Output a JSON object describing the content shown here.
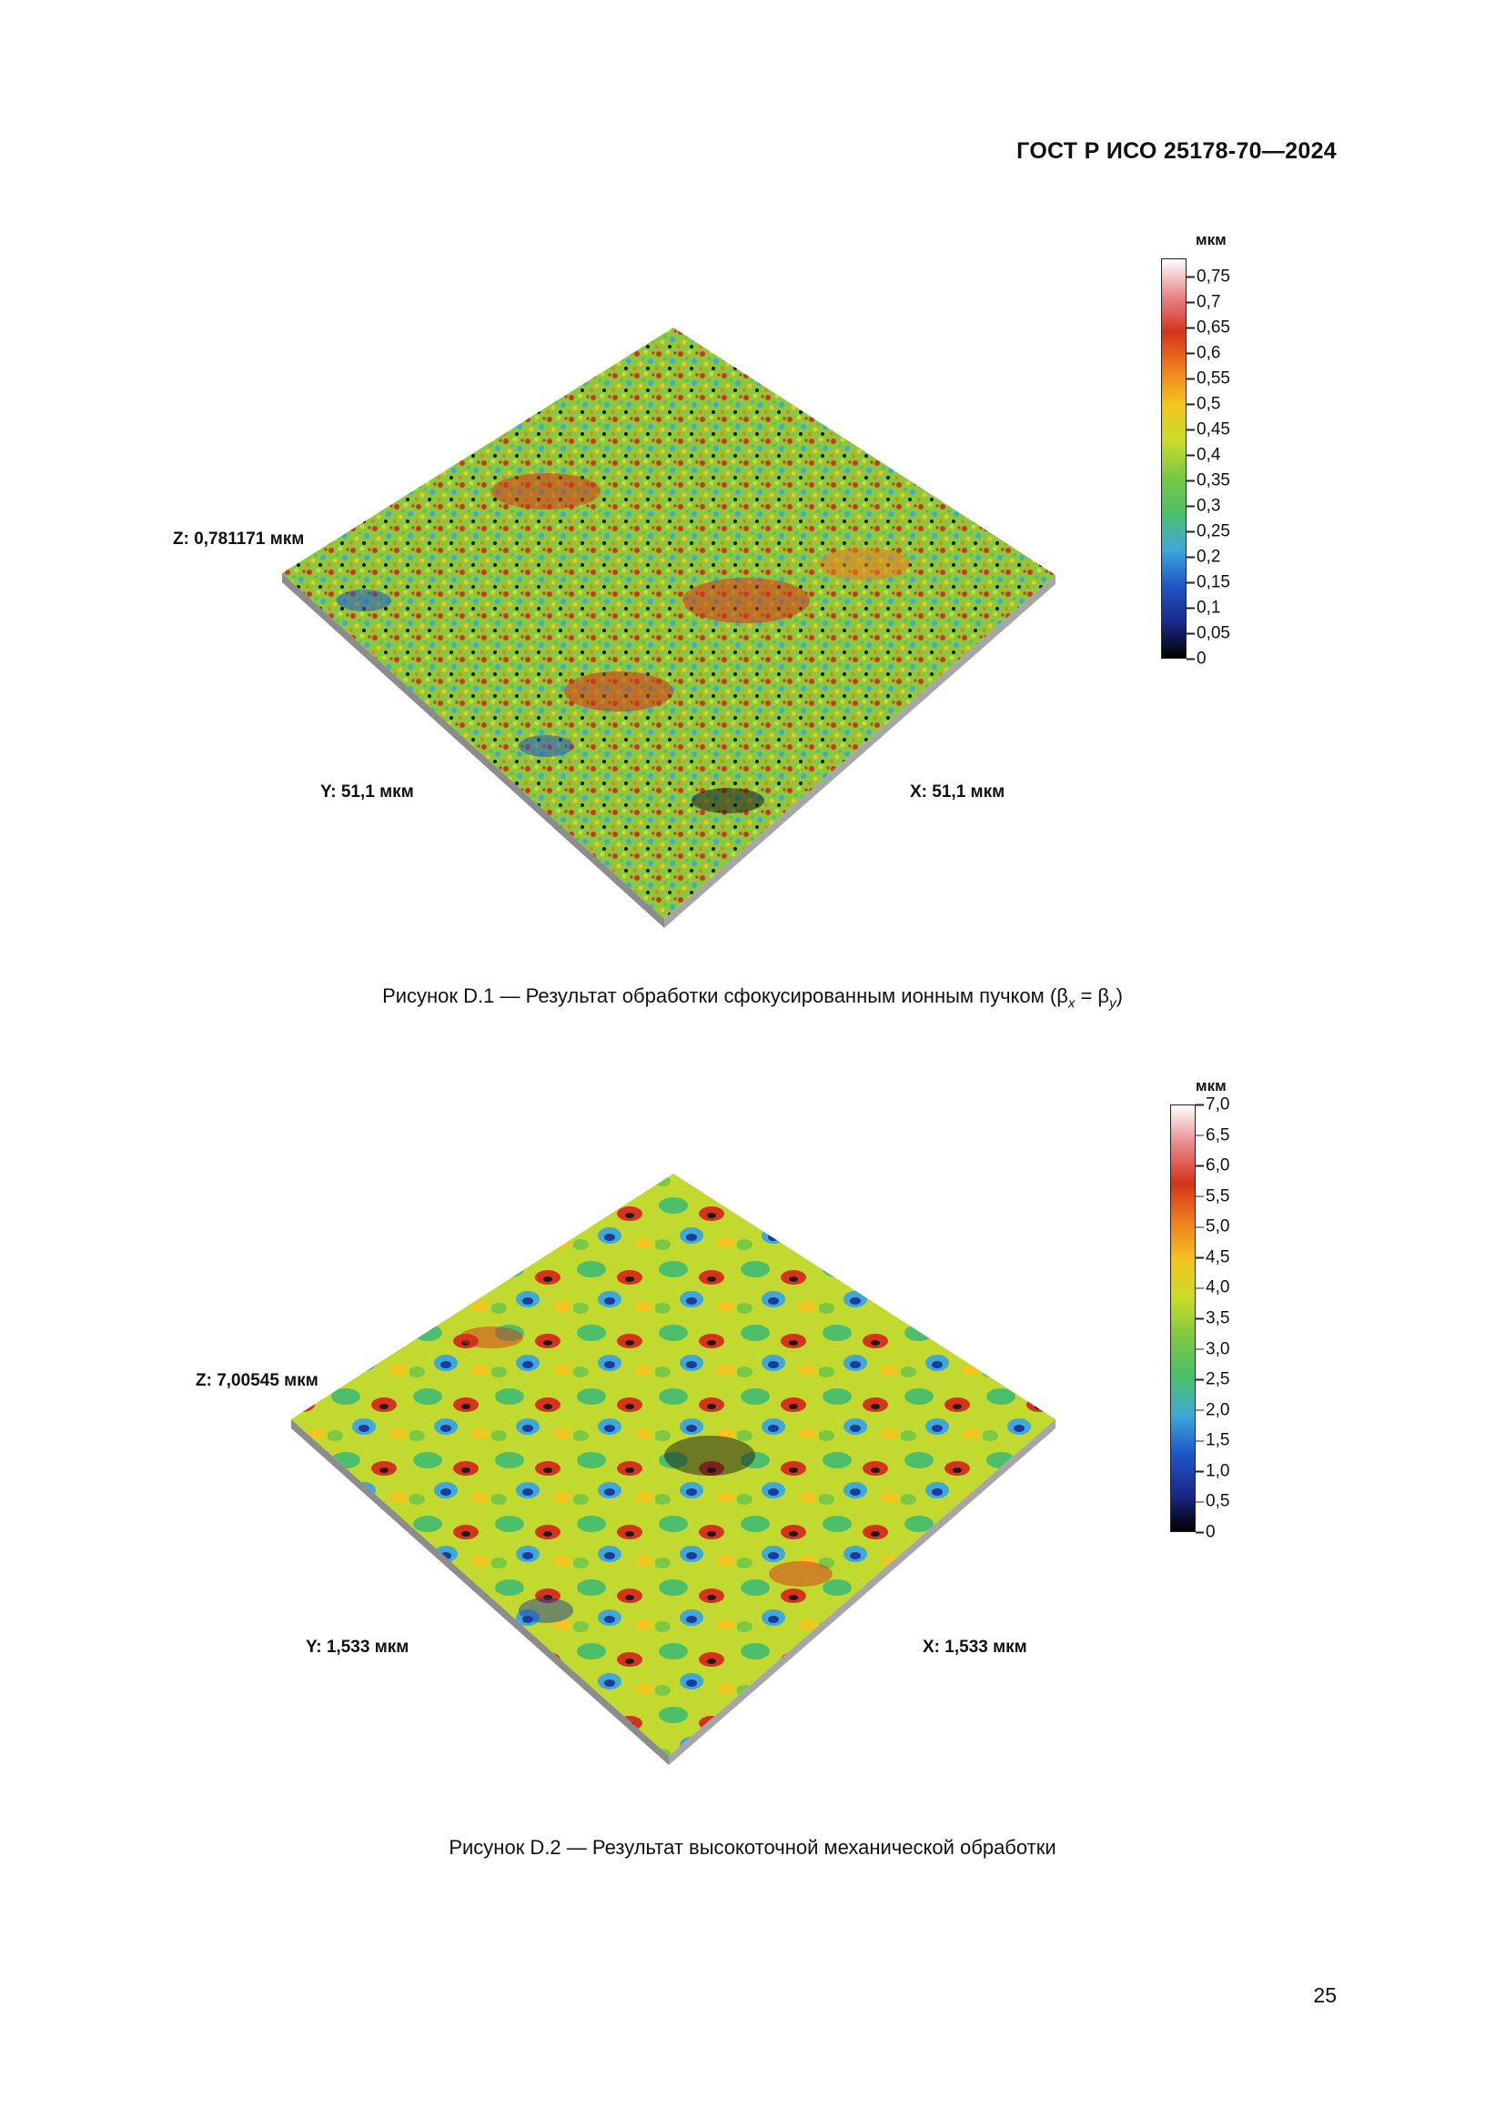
{
  "header": {
    "standard": "ГОСТ Р ИСО 25178-70—2024"
  },
  "figure1": {
    "z_label": "Z: 0,781171 мкм",
    "y_label": "Y: 51,1 мкм",
    "x_label": "X: 51,1 мкм",
    "colorbar": {
      "unit": "мкм",
      "ticks": [
        "0,75",
        "0,7",
        "0,65",
        "0,6",
        "0,55",
        "0,5",
        "0,45",
        "0,4",
        "0,35",
        "0,3",
        "0,25",
        "0,2",
        "0,15",
        "0,1",
        "0,05",
        "0"
      ]
    },
    "caption_prefix": "Рисунок D.1 — Результат обработки сфокусированным ионным пучком (β",
    "caption_sub_x": "x",
    "caption_mid": " = β",
    "caption_sub_y": "y",
    "caption_suffix": ")"
  },
  "figure2": {
    "z_label": "Z: 7,00545 мкм",
    "y_label": "Y: 1,533 мкм",
    "x_label": "X: 1,533 мкм",
    "colorbar": {
      "unit": "мкм",
      "ticks": [
        "7,0",
        "6,5",
        "6,0",
        "5,5",
        "5,0",
        "4,5",
        "4,0",
        "3,5",
        "3,0",
        "2,5",
        "2,0",
        "1,5",
        "1,0",
        "0,5",
        "0"
      ]
    },
    "caption": "Рисунок D.2 — Результат высокоточной механической обработки"
  },
  "page_number": "25",
  "colors": {
    "scale": [
      "#000000",
      "#1b2a8c",
      "#1f57c8",
      "#3fa8d8",
      "#4dbf6a",
      "#7ac843",
      "#c9dc2a",
      "#f2c51f",
      "#ee7d1e",
      "#d5331c",
      "#e8888c",
      "#ffffff"
    ]
  }
}
